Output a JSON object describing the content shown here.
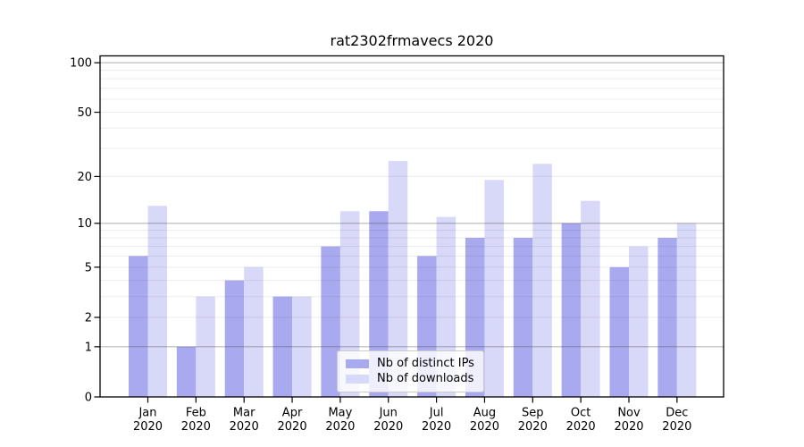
{
  "title": "rat2302frmavecs 2020",
  "chart_data": {
    "type": "bar",
    "categories": [
      "Jan",
      "Feb",
      "Mar",
      "Apr",
      "May",
      "Jun",
      "Jul",
      "Aug",
      "Sep",
      "Oct",
      "Nov",
      "Dec"
    ],
    "category_year": "2020",
    "series": [
      {
        "name": "Nb of distinct IPs",
        "color": "#a9a9ef",
        "values": [
          6,
          1,
          4,
          3,
          7,
          12,
          6,
          8,
          8,
          10,
          5,
          8
        ]
      },
      {
        "name": "Nb of downloads",
        "color": "#d8d8f8",
        "values": [
          13,
          3,
          5,
          3,
          12,
          25,
          11,
          19,
          24,
          14,
          7,
          10
        ]
      }
    ],
    "yscale": "log10(1+v)",
    "ylim": [
      0,
      110
    ],
    "yticks": [
      0,
      1,
      2,
      5,
      10,
      20,
      50,
      100
    ],
    "major_gridlines": [
      1,
      10,
      100
    ],
    "minor_gridlines": [
      2,
      3,
      4,
      5,
      6,
      7,
      8,
      9,
      20,
      30,
      40,
      50,
      60,
      70,
      80,
      90
    ],
    "grid": true,
    "legend_position": "lower center"
  }
}
